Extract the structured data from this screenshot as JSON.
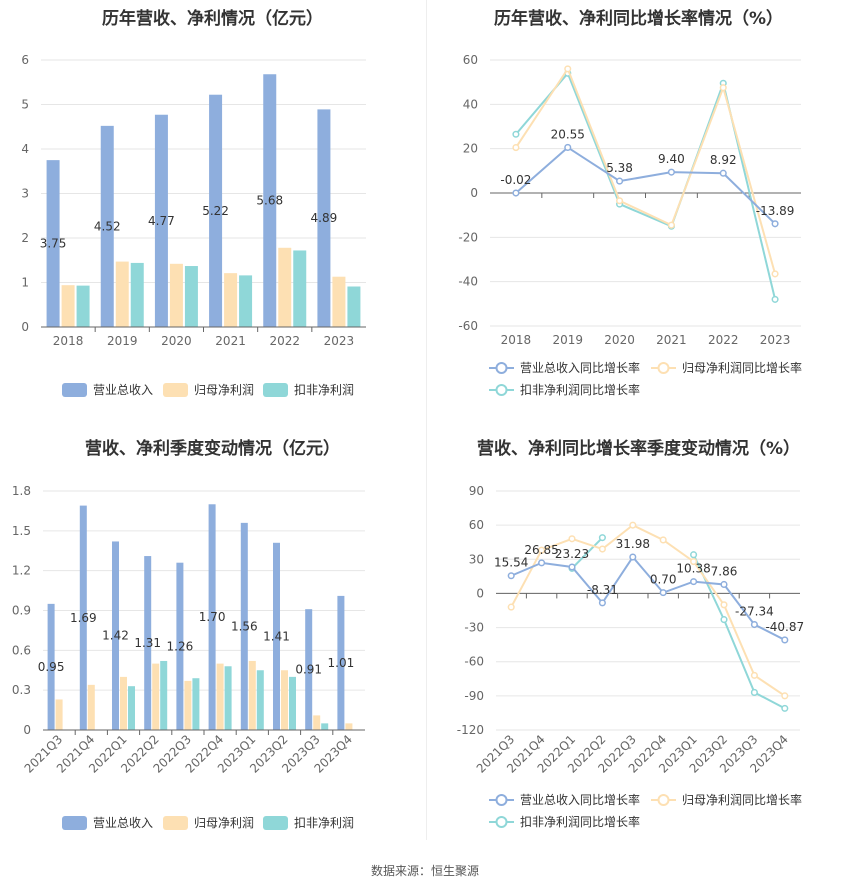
{
  "footer": {
    "source": "数据来源：恒生聚源"
  },
  "colors": {
    "revenue": "#8eaedd",
    "net_profit": "#fde0b3",
    "deducted": "#8fd7d8"
  },
  "chart_data": [
    {
      "type": "bar",
      "title": "历年营收、净利情况（亿元）",
      "categories": [
        "2018",
        "2019",
        "2020",
        "2021",
        "2022",
        "2023"
      ],
      "ylim": [
        0,
        6
      ],
      "yticks": [
        0,
        1,
        2,
        3,
        4,
        5,
        6
      ],
      "grid": true,
      "legend": "bottom",
      "series": [
        {
          "name": "营业总收入",
          "values": [
            3.75,
            4.52,
            4.77,
            5.22,
            5.68,
            4.89
          ],
          "labels": [
            "3.75",
            "4.52",
            "4.77",
            "5.22",
            "5.68",
            "4.89"
          ]
        },
        {
          "name": "归母净利润",
          "values": [
            0.94,
            1.47,
            1.42,
            1.21,
            1.78,
            1.13
          ]
        },
        {
          "name": "扣非净利润",
          "values": [
            0.93,
            1.44,
            1.37,
            1.16,
            1.72,
            0.91
          ]
        }
      ]
    },
    {
      "type": "line",
      "title": "历年营收、净利同比增长率情况（%）",
      "categories": [
        "2018",
        "2019",
        "2020",
        "2021",
        "2022",
        "2023"
      ],
      "ylim": [
        -60,
        60
      ],
      "yticks": [
        -60,
        -40,
        -20,
        0,
        20,
        40,
        60
      ],
      "grid": true,
      "legend": "bottom",
      "series": [
        {
          "name": "营业总收入同比增长率",
          "values": [
            -0.02,
            20.55,
            5.38,
            9.4,
            8.92,
            -13.89
          ],
          "labels": [
            "-0.02",
            "20.55",
            "5.38",
            "9.40",
            "8.92",
            "-13.89"
          ]
        },
        {
          "name": "归母净利润同比增长率",
          "values": [
            20.5,
            56.0,
            -3.5,
            -14.5,
            47.5,
            -36.5
          ]
        },
        {
          "name": "扣非净利润同比增长率",
          "values": [
            26.5,
            54.0,
            -5.0,
            -15.0,
            49.5,
            -48.0
          ]
        }
      ]
    },
    {
      "type": "bar",
      "title": "营收、净利季度变动情况（亿元）",
      "categories": [
        "2021Q3",
        "2021Q4",
        "2022Q1",
        "2022Q2",
        "2022Q3",
        "2022Q4",
        "2023Q1",
        "2023Q2",
        "2023Q3",
        "2023Q4"
      ],
      "ylim": [
        0,
        1.8
      ],
      "yticks": [
        0,
        0.3,
        0.6,
        0.9,
        1.2,
        1.5,
        1.8
      ],
      "ytick_labels": [
        "0",
        "0.3",
        "0.6",
        "0.9",
        "1.2",
        "1.5",
        "1.8"
      ],
      "grid": true,
      "legend": "bottom",
      "series": [
        {
          "name": "营业总收入",
          "values": [
            0.95,
            1.69,
            1.42,
            1.31,
            1.26,
            1.7,
            1.56,
            1.41,
            0.91,
            1.01
          ],
          "labels": [
            "0.95",
            "1.69",
            "1.42",
            "1.31",
            "1.26",
            "1.70",
            "1.56",
            "1.41",
            "0.91",
            "1.01"
          ]
        },
        {
          "name": "归母净利润",
          "values": [
            0.23,
            0.34,
            0.4,
            0.5,
            0.37,
            0.5,
            0.52,
            0.45,
            0.11,
            0.05
          ]
        },
        {
          "name": "扣非净利润",
          "values": [
            null,
            null,
            0.33,
            0.52,
            0.39,
            0.48,
            0.45,
            0.4,
            0.05,
            null
          ]
        }
      ]
    },
    {
      "type": "line",
      "title": "营收、净利同比增长率季度变动情况（%）",
      "categories": [
        "2021Q3",
        "2021Q4",
        "2022Q1",
        "2022Q2",
        "2022Q3",
        "2022Q4",
        "2023Q1",
        "2023Q2",
        "2023Q3",
        "2023Q4"
      ],
      "ylim": [
        -120,
        90
      ],
      "yticks": [
        -120,
        -90,
        -60,
        -30,
        0,
        30,
        60,
        90
      ],
      "grid": true,
      "legend": "bottom",
      "series": [
        {
          "name": "营业总收入同比增长率",
          "values": [
            15.54,
            26.85,
            23.23,
            -8.31,
            31.98,
            0.7,
            10.38,
            7.86,
            -27.34,
            -40.87
          ],
          "labels": [
            "15.54",
            "26.85",
            "23.23",
            "-8.31",
            "31.98",
            "0.70",
            "10.38",
            "7.86",
            "-27.34",
            "-40.87"
          ]
        },
        {
          "name": "归母净利润同比增长率",
          "values": [
            -12,
            38,
            48,
            39,
            60,
            47,
            28,
            -10,
            -72,
            -90
          ]
        },
        {
          "name": "扣非净利润同比增长率",
          "values": [
            null,
            null,
            22,
            49,
            null,
            null,
            34,
            -23,
            -87,
            -101
          ]
        }
      ]
    }
  ]
}
